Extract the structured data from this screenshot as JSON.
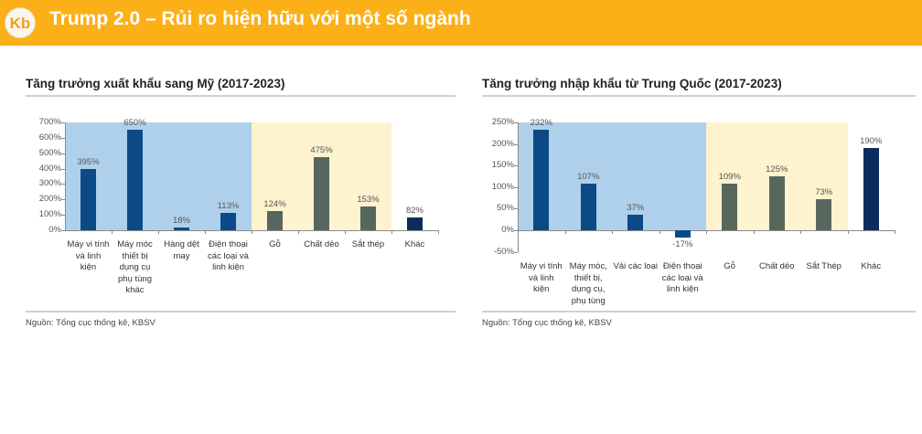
{
  "header": {
    "title": "Trump 2.0 – Rủi ro hiện hữu với một số ngành",
    "logo": "Kb"
  },
  "colors": {
    "header": "#fcb017",
    "bg_blue": "#afd0eb",
    "bg_yellow": "#fdf3cf",
    "bar_blue": "#0b4a86",
    "bar_gray": "#57675e",
    "bar_navy": "#0a2d5e"
  },
  "chart_data": [
    {
      "type": "bar",
      "title": "Tăng trưởng xuất khẩu sang Mỹ (2017-2023)",
      "categories": [
        "Máy vi tính và linh kiện",
        "Máy móc thiết bị dụng cụ phụ tùng khác",
        "Hàng dệt may",
        "Điện thoại các loại và linh kiện",
        "Gỗ",
        "Chất dẻo",
        "Sắt thép",
        "Khác"
      ],
      "category_labels": [
        "Máy vi tính\nvà linh\nkiện",
        "Máy móc\nthiết bị\ndụng cụ\nphụ tùng\nkhác",
        "Hàng dệt\nmay",
        "Điện thoại\ncác loại và\nlinh kiện",
        "Gỗ",
        "Chất dẻo",
        "Sắt thép",
        "Khác"
      ],
      "values": [
        395,
        650,
        18,
        113,
        124,
        475,
        153,
        82
      ],
      "value_labels": [
        "395%",
        "650%",
        "18%",
        "113%",
        "124%",
        "475%",
        "153%",
        "82%"
      ],
      "groups": [
        "blue",
        "blue",
        "blue",
        "blue",
        "gray",
        "gray",
        "gray",
        "navy"
      ],
      "yticks": [
        "700%",
        "600%",
        "500%",
        "400%",
        "300%",
        "200%",
        "100%",
        "0%"
      ],
      "ylim": [
        0,
        700
      ],
      "ylabel": "",
      "xlabel": "",
      "source": "Nguồn: Tổng cục thống kê, KBSV"
    },
    {
      "type": "bar",
      "title": "Tăng trưởng nhập khẩu từ Trung Quốc (2017-2023)",
      "categories": [
        "Máy vi tính và linh kiện",
        "Máy móc, thiết bị, dụng cụ, phụ tùng",
        "Vải các loại",
        "Điện thoại các loại và linh kiện",
        "Gỗ",
        "Chất dẻo",
        "Sắt Thép",
        "Khác"
      ],
      "category_labels": [
        "Máy vi tính\nvà linh\nkiện",
        "Máy móc,\nthiết bị,\ndụng cụ,\nphụ tùng",
        "Vải các loại",
        "Điện thoại\ncác loại và\nlinh kiện",
        "Gỗ",
        "Chất dẻo",
        "Sắt Thép",
        "Khác"
      ],
      "values": [
        232,
        107,
        37,
        -17,
        109,
        125,
        73,
        190
      ],
      "value_labels": [
        "232%",
        "107%",
        "37%",
        "-17%",
        "109%",
        "125%",
        "73%",
        "190%"
      ],
      "groups": [
        "blue",
        "blue",
        "blue",
        "blue",
        "gray",
        "gray",
        "gray",
        "navy"
      ],
      "yticks": [
        "250%",
        "200%",
        "150%",
        "100%",
        "50%",
        "0%",
        "-50%"
      ],
      "ylim": [
        -50,
        250
      ],
      "ylabel": "",
      "xlabel": "",
      "source": "Nguồn: Tổng cục thống kê, KBSV"
    }
  ]
}
